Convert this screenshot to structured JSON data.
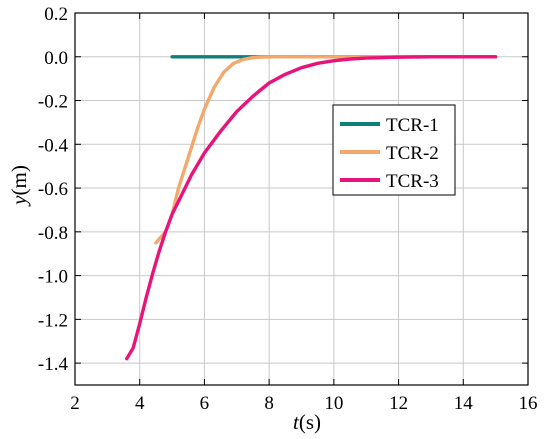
{
  "chart_data": {
    "type": "line",
    "xlabel": {
      "var": "t",
      "unit": "(s)"
    },
    "ylabel": {
      "var": "y",
      "unit": "(m)"
    },
    "xlim": [
      2,
      16
    ],
    "ylim": [
      -1.5,
      0.2
    ],
    "xticks": [
      2,
      4,
      6,
      8,
      10,
      12,
      14,
      16
    ],
    "yticks": [
      0.2,
      0.0,
      -0.2,
      -0.4,
      -0.6,
      -0.8,
      -1.0,
      -1.2,
      -1.4
    ],
    "ytick_labels": [
      "0.2",
      "0.0",
      "-0.2",
      "-0.4",
      "-0.6",
      "-0.8",
      "-1.0",
      "-1.2",
      "-1.4"
    ],
    "grid": true,
    "legend_position": "center-right",
    "series": [
      {
        "name": "TCR-1",
        "color": "#0f7f7a",
        "x": [
          5.0,
          6.0,
          7.0,
          8.0,
          9.0,
          10.0,
          11.0,
          12.0,
          13.0,
          14.0,
          15.0
        ],
        "y": [
          0.0,
          0.0,
          0.0,
          0.0,
          0.0,
          0.0,
          0.0,
          0.0,
          0.0,
          0.0,
          0.0
        ]
      },
      {
        "name": "TCR-2",
        "color": "#f5a86b",
        "x": [
          4.5,
          4.8,
          5.0,
          5.2,
          5.5,
          5.8,
          6.0,
          6.3,
          6.6,
          6.9,
          7.2,
          7.5,
          7.8,
          8.1,
          8.5,
          9.0,
          10.0,
          11.0,
          12.0,
          13.0,
          14.0,
          15.0
        ],
        "y": [
          -0.85,
          -0.8,
          -0.72,
          -0.6,
          -0.46,
          -0.32,
          -0.24,
          -0.14,
          -0.07,
          -0.03,
          -0.012,
          -0.004,
          -0.001,
          0.0,
          0.0,
          0.0,
          0.0,
          0.0,
          0.0,
          0.0,
          0.0,
          0.0
        ]
      },
      {
        "name": "TCR-3",
        "color": "#e8147a",
        "x": [
          3.6,
          3.8,
          4.0,
          4.2,
          4.4,
          4.6,
          4.8,
          5.0,
          5.3,
          5.6,
          6.0,
          6.5,
          7.0,
          7.5,
          8.0,
          8.5,
          9.0,
          9.5,
          10.0,
          10.5,
          11.0,
          12.0,
          13.0,
          14.0,
          15.0
        ],
        "y": [
          -1.38,
          -1.33,
          -1.22,
          -1.1,
          -0.99,
          -0.89,
          -0.8,
          -0.72,
          -0.63,
          -0.54,
          -0.44,
          -0.34,
          -0.25,
          -0.18,
          -0.12,
          -0.08,
          -0.05,
          -0.03,
          -0.018,
          -0.01,
          -0.006,
          -0.002,
          0.0,
          0.0,
          0.0
        ]
      }
    ]
  }
}
